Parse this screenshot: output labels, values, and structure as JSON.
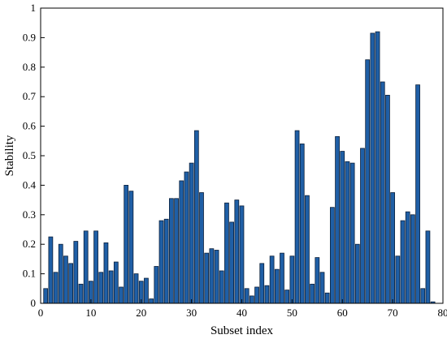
{
  "chart_data": {
    "type": "bar",
    "title": "",
    "xlabel": "Subset index",
    "ylabel": "Stability",
    "xlim": [
      0,
      80
    ],
    "ylim": [
      0,
      1
    ],
    "xticks": [
      0,
      10,
      20,
      30,
      40,
      50,
      60,
      70,
      80
    ],
    "yticks": [
      0,
      0.1,
      0.2,
      0.3,
      0.4,
      0.5,
      0.6,
      0.7,
      0.8,
      0.9,
      1
    ],
    "ytick_labels": [
      "0",
      "0.1",
      "0.2",
      "0.3",
      "0.4",
      "0.5",
      "0.6",
      "0.7",
      "0.8",
      "0.9",
      "1"
    ],
    "grid": false,
    "bar_color": "#1f5fa6",
    "bar_edge_color": "#0b1f3a",
    "x": [
      1,
      2,
      3,
      4,
      5,
      6,
      7,
      8,
      9,
      10,
      11,
      12,
      13,
      14,
      15,
      16,
      17,
      18,
      19,
      20,
      21,
      22,
      23,
      24,
      25,
      26,
      27,
      28,
      29,
      30,
      31,
      32,
      33,
      34,
      35,
      36,
      37,
      38,
      39,
      40,
      41,
      42,
      43,
      44,
      45,
      46,
      47,
      48,
      49,
      50,
      51,
      52,
      53,
      54,
      55,
      56,
      57,
      58,
      59,
      60,
      61,
      62,
      63,
      64,
      65,
      66,
      67,
      68,
      69,
      70,
      71,
      72,
      73,
      74,
      75,
      76,
      77,
      78
    ],
    "values": [
      0.05,
      0.225,
      0.105,
      0.2,
      0.16,
      0.135,
      0.21,
      0.065,
      0.245,
      0.075,
      0.245,
      0.105,
      0.205,
      0.11,
      0.14,
      0.055,
      0.4,
      0.38,
      0.1,
      0.075,
      0.085,
      0.015,
      0.125,
      0.28,
      0.285,
      0.355,
      0.355,
      0.415,
      0.445,
      0.475,
      0.585,
      0.375,
      0.17,
      0.185,
      0.18,
      0.11,
      0.34,
      0.275,
      0.35,
      0.33,
      0.05,
      0.025,
      0.055,
      0.135,
      0.06,
      0.16,
      0.115,
      0.17,
      0.045,
      0.16,
      0.585,
      0.54,
      0.365,
      0.065,
      0.155,
      0.105,
      0.035,
      0.325,
      0.565,
      0.515,
      0.48,
      0.475,
      0.2,
      0.525,
      0.825,
      0.915,
      0.92,
      0.75,
      0.705,
      0.375,
      0.16,
      0.28,
      0.31,
      0.3,
      0.74,
      0.05,
      0.245,
      0.005
    ]
  }
}
